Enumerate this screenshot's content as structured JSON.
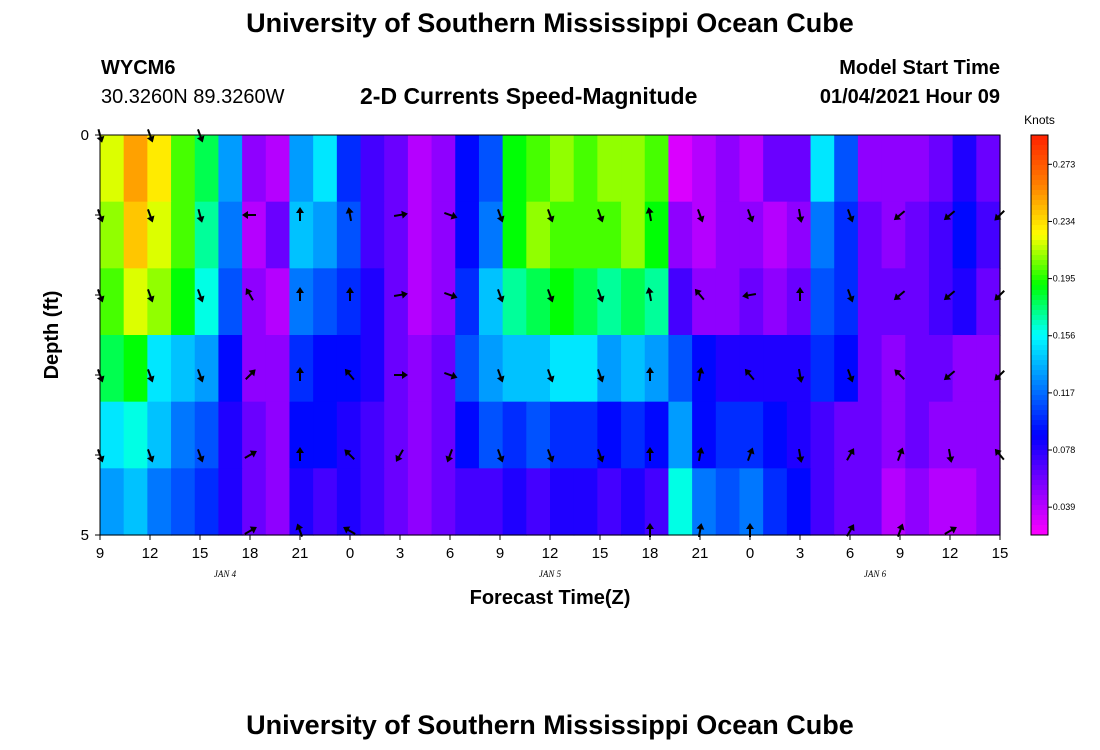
{
  "header": {
    "title": "University of Southern Mississippi Ocean Cube",
    "station_id": "WYCM6",
    "coords": "30.3260N 89.3260W",
    "subtitle": "2-D Currents Speed-Magnitude",
    "model_start_label": "Model Start Time",
    "model_start_value": "01/04/2021 Hour 09"
  },
  "footer": {
    "title": "University of Southern Mississippi Ocean Cube"
  },
  "chart_data": {
    "type": "heatmap",
    "title": "2-D Currents Speed-Magnitude",
    "xlabel": "Forecast Time(Z)",
    "ylabel": "Depth (ft)",
    "ylim": [
      0,
      5
    ],
    "y_tick_labels": [
      "0",
      "",
      "",
      "",
      "",
      "5"
    ],
    "x_tick_labels": [
      "9",
      "12",
      "15",
      "18",
      "21",
      "0",
      "3",
      "6",
      "9",
      "12",
      "15",
      "18",
      "21",
      "0",
      "3",
      "6",
      "9",
      "12",
      "15"
    ],
    "date_labels": [
      {
        "text": "JAN 4",
        "hour_index": 2.5
      },
      {
        "text": "JAN 5",
        "hour_index": 9
      },
      {
        "text": "JAN 6",
        "hour_index": 15.5
      }
    ],
    "colorbar": {
      "unit": "Knots",
      "ticks": [
        "0.273",
        "0.234",
        "0.195",
        "0.156",
        "0.117",
        "0.078",
        "0.039"
      ],
      "tick_values": [
        0.273,
        0.234,
        0.195,
        0.156,
        0.117,
        0.078,
        0.039
      ],
      "range": [
        0.02,
        0.293
      ],
      "colors": [
        "#ff00ff",
        "#8000ff",
        "#0000ff",
        "#0080ff",
        "#00ffff",
        "#00ff00",
        "#ffff00",
        "#ff8000",
        "#ff2000"
      ]
    },
    "speed_rows": [
      [
        0.22,
        0.25,
        0.23,
        0.2,
        0.18,
        0.13,
        0.05,
        0.04,
        0.13,
        0.15,
        0.1,
        0.07,
        0.06,
        0.04,
        0.05,
        0.09,
        0.11,
        0.19,
        0.2,
        0.21,
        0.2,
        0.21,
        0.21,
        0.2,
        0.03,
        0.04,
        0.05,
        0.04,
        0.06,
        0.06,
        0.15,
        0.11,
        0.05,
        0.05,
        0.05,
        0.06,
        0.08,
        0.06
      ],
      [
        0.21,
        0.24,
        0.22,
        0.2,
        0.17,
        0.12,
        0.04,
        0.06,
        0.14,
        0.13,
        0.11,
        0.07,
        0.06,
        0.04,
        0.05,
        0.09,
        0.12,
        0.19,
        0.21,
        0.2,
        0.2,
        0.2,
        0.21,
        0.19,
        0.05,
        0.04,
        0.05,
        0.05,
        0.04,
        0.05,
        0.12,
        0.1,
        0.06,
        0.05,
        0.06,
        0.07,
        0.09,
        0.07
      ],
      [
        0.2,
        0.22,
        0.21,
        0.19,
        0.16,
        0.11,
        0.05,
        0.04,
        0.12,
        0.11,
        0.1,
        0.08,
        0.06,
        0.04,
        0.05,
        0.1,
        0.14,
        0.17,
        0.18,
        0.19,
        0.18,
        0.17,
        0.18,
        0.17,
        0.07,
        0.05,
        0.05,
        0.06,
        0.05,
        0.06,
        0.11,
        0.1,
        0.06,
        0.06,
        0.06,
        0.07,
        0.08,
        0.06
      ],
      [
        0.18,
        0.19,
        0.15,
        0.14,
        0.13,
        0.09,
        0.05,
        0.05,
        0.1,
        0.09,
        0.09,
        0.08,
        0.06,
        0.05,
        0.06,
        0.11,
        0.13,
        0.14,
        0.14,
        0.15,
        0.15,
        0.13,
        0.14,
        0.13,
        0.11,
        0.09,
        0.08,
        0.08,
        0.08,
        0.08,
        0.1,
        0.09,
        0.06,
        0.05,
        0.06,
        0.06,
        0.05,
        0.05
      ],
      [
        0.15,
        0.16,
        0.14,
        0.12,
        0.11,
        0.08,
        0.06,
        0.05,
        0.09,
        0.09,
        0.08,
        0.07,
        0.06,
        0.05,
        0.06,
        0.09,
        0.11,
        0.1,
        0.11,
        0.1,
        0.1,
        0.09,
        0.1,
        0.09,
        0.13,
        0.09,
        0.1,
        0.1,
        0.09,
        0.08,
        0.07,
        0.06,
        0.06,
        0.05,
        0.06,
        0.05,
        0.05,
        0.05
      ],
      [
        0.13,
        0.14,
        0.12,
        0.11,
        0.1,
        0.08,
        0.06,
        0.05,
        0.08,
        0.07,
        0.08,
        0.07,
        0.06,
        0.05,
        0.06,
        0.07,
        0.07,
        0.08,
        0.07,
        0.08,
        0.08,
        0.07,
        0.08,
        0.07,
        0.16,
        0.12,
        0.11,
        0.12,
        0.1,
        0.09,
        0.07,
        0.06,
        0.06,
        0.04,
        0.05,
        0.04,
        0.04,
        0.05
      ]
    ],
    "vector_rows": [
      {
        "depth": 0.0,
        "dirs": [
          165,
          160,
          160,
          null,
          null,
          null,
          null,
          null,
          null,
          null,
          null,
          null,
          null,
          null,
          null,
          null,
          null,
          null,
          null
        ]
      },
      {
        "depth": 1.0,
        "dirs": [
          160,
          160,
          165,
          270,
          0,
          350,
          80,
          110,
          160,
          160,
          160,
          350,
          160,
          160,
          170,
          160,
          230,
          230,
          225
        ]
      },
      {
        "depth": 2.0,
        "dirs": [
          160,
          160,
          160,
          330,
          0,
          0,
          80,
          110,
          160,
          160,
          160,
          350,
          320,
          260,
          0,
          160,
          230,
          230,
          225
        ]
      },
      {
        "depth": 3.0,
        "dirs": [
          160,
          160,
          160,
          45,
          0,
          320,
          90,
          110,
          160,
          160,
          160,
          0,
          10,
          320,
          170,
          160,
          315,
          230,
          225
        ]
      },
      {
        "depth": 4.0,
        "dirs": [
          160,
          160,
          160,
          60,
          0,
          315,
          210,
          200,
          160,
          160,
          160,
          0,
          10,
          20,
          170,
          30,
          20,
          170,
          320
        ]
      },
      {
        "depth": 4.95,
        "dirs": [
          null,
          null,
          null,
          60,
          340,
          300,
          null,
          null,
          null,
          null,
          null,
          0,
          10,
          0,
          null,
          30,
          20,
          60,
          null
        ]
      }
    ]
  }
}
